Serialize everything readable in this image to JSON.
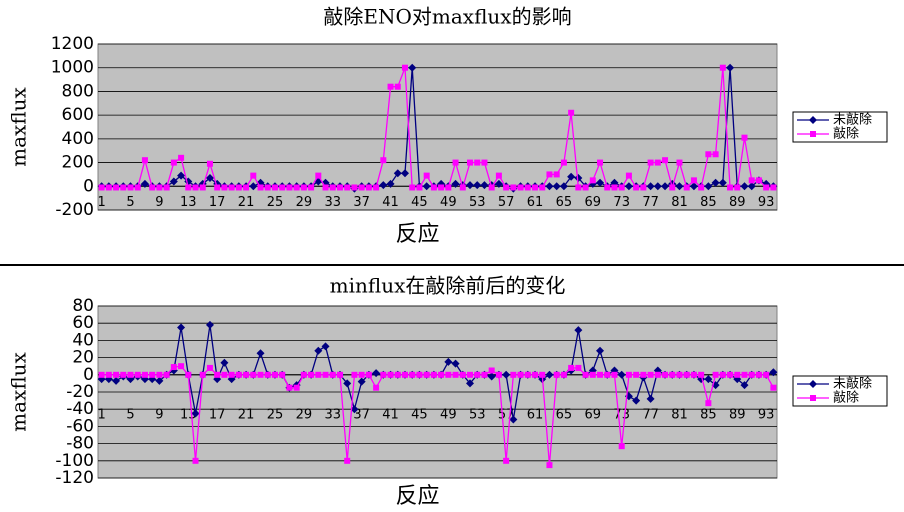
{
  "chart_data": [
    {
      "type": "line",
      "title": "敲除ENO对maxflux的影响",
      "y_label": "maxflux",
      "x_label": "反应",
      "categories": [
        "1",
        null,
        null,
        null,
        "5",
        null,
        null,
        null,
        "9",
        null,
        null,
        null,
        "13",
        null,
        null,
        null,
        "17",
        null,
        null,
        null,
        "21",
        null,
        null,
        null,
        "25",
        null,
        null,
        null,
        "29",
        null,
        null,
        null,
        "33",
        null,
        null,
        null,
        "37",
        null,
        null,
        null,
        "41",
        null,
        null,
        null,
        "45",
        null,
        null,
        null,
        "49",
        null,
        null,
        null,
        "53",
        null,
        null,
        null,
        "57",
        null,
        null,
        null,
        "61",
        null,
        null,
        null,
        "65",
        null,
        null,
        null,
        "69",
        null,
        null,
        null,
        "73",
        null,
        null,
        null,
        "77",
        null,
        null,
        null,
        "81",
        null,
        null,
        null,
        "85",
        null,
        null,
        null,
        "89",
        null,
        null,
        null,
        "93",
        null
      ],
      "ylim": [
        -200,
        1200
      ],
      "yticks": [
        -200,
        0,
        200,
        400,
        600,
        800,
        1000,
        1200
      ],
      "grid": true,
      "legend": "right",
      "plot_background": "#c0c0c0",
      "series": [
        {
          "name": "未敲除",
          "color": "#000080",
          "marker": "diamond",
          "values": [
            0,
            0,
            0,
            0,
            0,
            0,
            20,
            0,
            0,
            0,
            40,
            90,
            40,
            0,
            20,
            70,
            20,
            0,
            0,
            0,
            0,
            0,
            30,
            0,
            0,
            0,
            0,
            0,
            0,
            0,
            40,
            30,
            0,
            0,
            0,
            -20,
            0,
            0,
            0,
            10,
            20,
            110,
            110,
            1000,
            0,
            0,
            0,
            20,
            0,
            20,
            10,
            10,
            10,
            10,
            10,
            20,
            0,
            -20,
            0,
            0,
            0,
            0,
            0,
            0,
            0,
            80,
            70,
            0,
            20,
            30,
            0,
            30,
            0,
            0,
            0,
            0,
            0,
            0,
            0,
            20,
            0,
            0,
            0,
            0,
            0,
            30,
            30,
            1000,
            0,
            0,
            0,
            50,
            20,
            0
          ]
        },
        {
          "name": "敲除",
          "color": "#ff00ff",
          "marker": "square",
          "values": [
            -10,
            -10,
            -10,
            -10,
            -10,
            -10,
            220,
            -10,
            -10,
            -10,
            200,
            240,
            -10,
            -10,
            -10,
            190,
            -10,
            -10,
            -10,
            -10,
            -10,
            90,
            -10,
            -10,
            -10,
            -10,
            -10,
            -10,
            -10,
            -10,
            90,
            -10,
            -10,
            -10,
            -10,
            -10,
            -10,
            -10,
            -10,
            220,
            840,
            840,
            1000,
            -10,
            -10,
            90,
            -10,
            -10,
            -10,
            200,
            -10,
            200,
            200,
            200,
            -10,
            90,
            -10,
            -10,
            -10,
            -10,
            -10,
            -10,
            100,
            100,
            200,
            620,
            -10,
            -10,
            50,
            200,
            -10,
            -10,
            -10,
            90,
            -10,
            -10,
            200,
            200,
            220,
            -10,
            200,
            -10,
            50,
            -10,
            270,
            270,
            1000,
            -10,
            -10,
            410,
            50,
            50,
            -10,
            -10
          ]
        }
      ]
    },
    {
      "type": "line",
      "title": "minflux在敲除前后的变化",
      "y_label": "maxflux",
      "x_label": "反应",
      "categories": [
        "1",
        null,
        null,
        null,
        "5",
        null,
        null,
        null,
        "9",
        null,
        null,
        null,
        "13",
        null,
        null,
        null,
        "17",
        null,
        null,
        null,
        "21",
        null,
        null,
        null,
        "25",
        null,
        null,
        null,
        "29",
        null,
        null,
        null,
        "33",
        null,
        null,
        null,
        "37",
        null,
        null,
        null,
        "41",
        null,
        null,
        null,
        "45",
        null,
        null,
        null,
        "49",
        null,
        null,
        null,
        "53",
        null,
        null,
        null,
        "57",
        null,
        null,
        null,
        "61",
        null,
        null,
        null,
        "65",
        null,
        null,
        null,
        "69",
        null,
        null,
        null,
        "73",
        null,
        null,
        null,
        "77",
        null,
        null,
        null,
        "81",
        null,
        null,
        null,
        "85",
        null,
        null,
        null,
        "89",
        null,
        null,
        null,
        "93",
        null
      ],
      "ylim": [
        -120,
        80
      ],
      "yticks": [
        -120,
        -100,
        -80,
        -60,
        -40,
        -20,
        0,
        20,
        40,
        60,
        80
      ],
      "grid": true,
      "legend": "right",
      "plot_background": "#c0c0c0",
      "series": [
        {
          "name": "未敲除",
          "color": "#000080",
          "marker": "diamond",
          "values": [
            -5,
            -5,
            -7,
            -2,
            -5,
            -2,
            -5,
            -5,
            -7,
            0,
            5,
            55,
            0,
            -45,
            0,
            58,
            -5,
            14,
            -5,
            0,
            0,
            0,
            25,
            0,
            0,
            0,
            -15,
            -12,
            0,
            0,
            28,
            33,
            0,
            0,
            -10,
            -40,
            -8,
            0,
            2,
            0,
            0,
            0,
            0,
            0,
            0,
            0,
            0,
            0,
            15,
            13,
            0,
            -10,
            0,
            0,
            -2,
            0,
            0,
            -52,
            0,
            0,
            0,
            -5,
            0,
            0,
            0,
            5,
            52,
            0,
            5,
            28,
            0,
            5,
            0,
            -25,
            -30,
            -3,
            -28,
            5,
            0,
            0,
            0,
            0,
            0,
            -5,
            -5,
            -12,
            0,
            0,
            -5,
            -12,
            0,
            0,
            0,
            3
          ]
        },
        {
          "name": "敲除",
          "color": "#ff00ff",
          "marker": "square",
          "values": [
            0,
            0,
            0,
            0,
            0,
            0,
            0,
            0,
            0,
            0,
            9,
            10,
            0,
            -100,
            0,
            8,
            0,
            0,
            0,
            0,
            0,
            0,
            0,
            0,
            0,
            0,
            -15,
            -15,
            0,
            0,
            0,
            0,
            0,
            0,
            -100,
            0,
            0,
            0,
            -15,
            0,
            0,
            0,
            0,
            0,
            0,
            0,
            0,
            0,
            0,
            0,
            0,
            0,
            0,
            0,
            5,
            0,
            -100,
            0,
            0,
            0,
            0,
            0,
            -105,
            0,
            0,
            8,
            8,
            0,
            0,
            0,
            0,
            0,
            -83,
            0,
            0,
            0,
            0,
            0,
            0,
            0,
            0,
            0,
            0,
            0,
            -33,
            0,
            0,
            0,
            0,
            0,
            0,
            0,
            0,
            -15
          ]
        }
      ]
    }
  ]
}
